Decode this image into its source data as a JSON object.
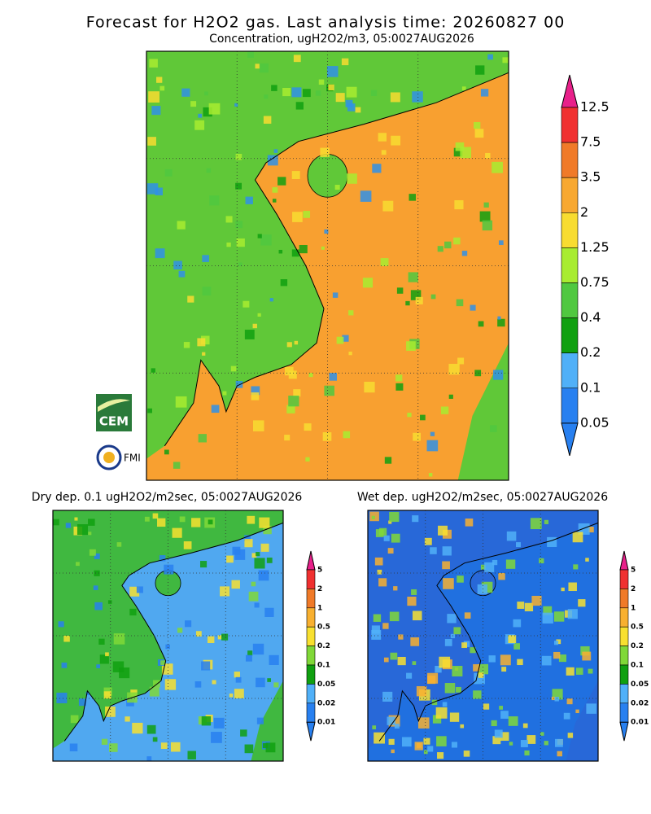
{
  "header": {
    "title": "Forecast for H2O2 gas. Last analysis time: 20260827 00",
    "subtitle": "Concentration, ugH2O2/m3, 05:0027AUG2026"
  },
  "main_map": {
    "colorbar": {
      "labels": [
        "12.5",
        "7.5",
        "3.5",
        "2",
        "1.25",
        "0.75",
        "0.4",
        "0.2",
        "0.1",
        "0.05"
      ],
      "colors": [
        "#e8208a",
        "#f03030",
        "#f07a28",
        "#f8a830",
        "#f8dc30",
        "#a8ec30",
        "#50c840",
        "#10a010",
        "#50b0f8",
        "#2880f0",
        "#2880f0"
      ]
    }
  },
  "dry_map": {
    "title": "Dry dep. 0.1 ugH2O2/m2sec, 05:0027AUG2026",
    "colorbar": {
      "labels": [
        "5",
        "2",
        "1",
        "0.5",
        "0.2",
        "0.1",
        "0.05",
        "0.02",
        "0.01"
      ],
      "colors": [
        "#e8208a",
        "#f03030",
        "#f07a28",
        "#f8b030",
        "#f8e030",
        "#80d838",
        "#10a010",
        "#50b0f8",
        "#2880f0",
        "#2880f0"
      ]
    }
  },
  "wet_map": {
    "title": "Wet dep. ugH2O2/m2sec, 05:0027AUG2026",
    "colorbar": {
      "labels": [
        "5",
        "2",
        "1",
        "0.5",
        "0.2",
        "0.1",
        "0.05",
        "0.02",
        "0.01"
      ],
      "colors": [
        "#e8208a",
        "#f03030",
        "#f07a28",
        "#f8b030",
        "#f8e030",
        "#80d838",
        "#10a010",
        "#50b0f8",
        "#2880f0",
        "#2880f0"
      ]
    }
  },
  "logos": {
    "cem": "CEM",
    "fmi": "FMI"
  }
}
